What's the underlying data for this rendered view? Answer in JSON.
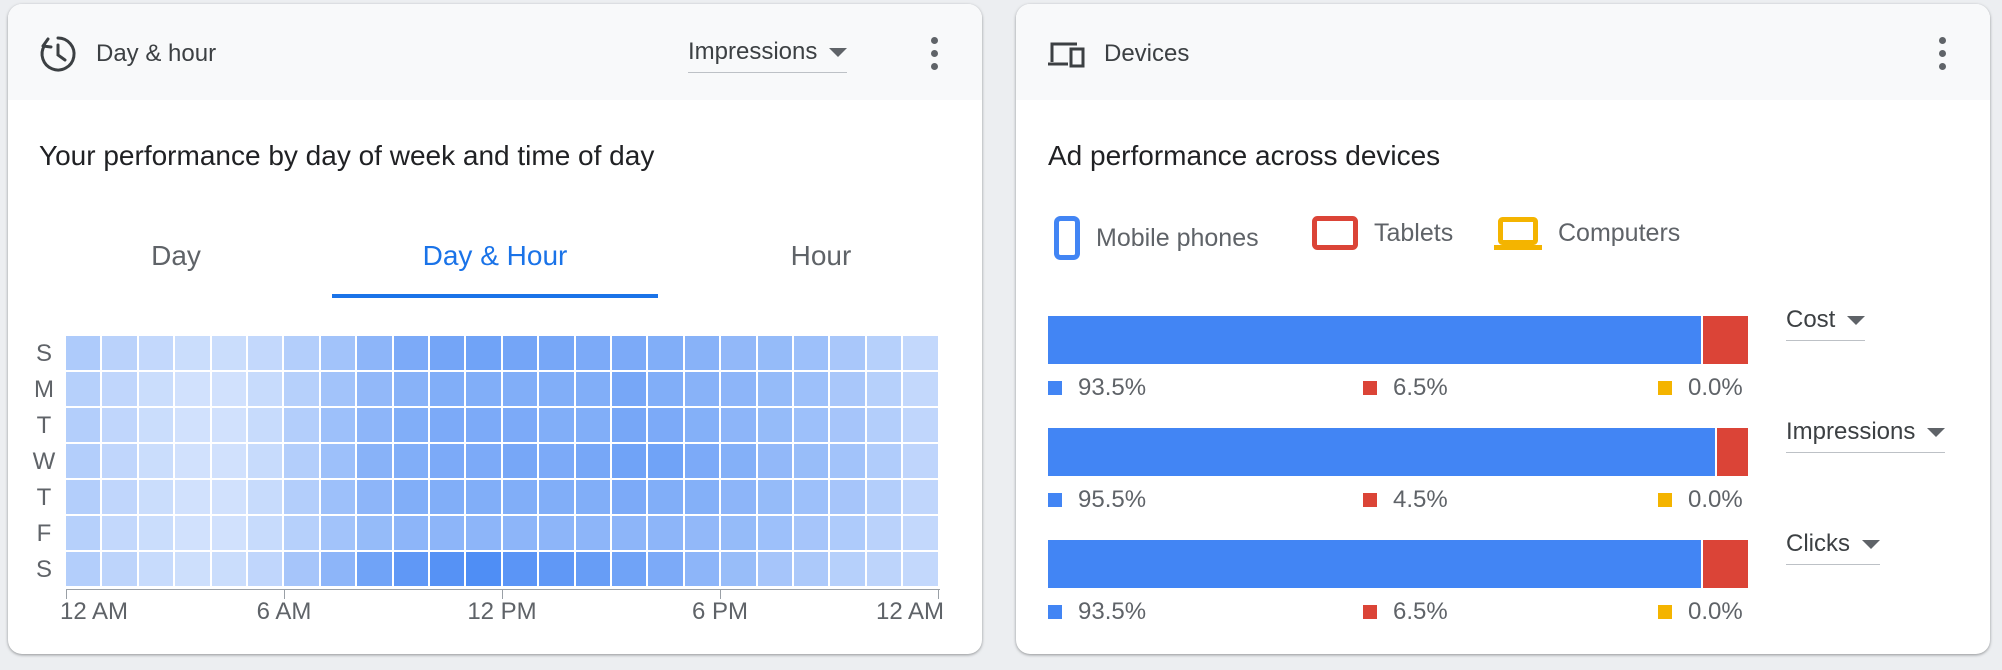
{
  "day_hour_card": {
    "title": "Day & hour",
    "metric": "Impressions",
    "heading": "Your performance by day of week and time of day",
    "tabs": [
      "Day",
      "Day & Hour",
      "Hour"
    ],
    "active_tab": "Day & Hour",
    "day_labels": [
      "S",
      "M",
      "T",
      "W",
      "T",
      "F",
      "S"
    ],
    "axis_labels": [
      "12 AM",
      "6 AM",
      "12 PM",
      "6 PM",
      "12 AM"
    ],
    "heatmap_intensity": [
      [
        0.35,
        0.28,
        0.22,
        0.18,
        0.18,
        0.22,
        0.32,
        0.42,
        0.55,
        0.65,
        0.7,
        0.72,
        0.7,
        0.68,
        0.65,
        0.65,
        0.62,
        0.58,
        0.52,
        0.5,
        0.45,
        0.38,
        0.3,
        0.22
      ],
      [
        0.3,
        0.24,
        0.18,
        0.14,
        0.14,
        0.2,
        0.3,
        0.42,
        0.52,
        0.58,
        0.62,
        0.62,
        0.62,
        0.62,
        0.62,
        0.68,
        0.62,
        0.58,
        0.55,
        0.5,
        0.45,
        0.38,
        0.3,
        0.22
      ],
      [
        0.32,
        0.24,
        0.18,
        0.14,
        0.14,
        0.2,
        0.32,
        0.45,
        0.55,
        0.62,
        0.65,
        0.65,
        0.65,
        0.62,
        0.62,
        0.68,
        0.65,
        0.6,
        0.55,
        0.5,
        0.45,
        0.4,
        0.32,
        0.24
      ],
      [
        0.32,
        0.24,
        0.18,
        0.14,
        0.14,
        0.2,
        0.32,
        0.45,
        0.58,
        0.62,
        0.65,
        0.65,
        0.68,
        0.65,
        0.68,
        0.72,
        0.72,
        0.65,
        0.6,
        0.52,
        0.48,
        0.42,
        0.34,
        0.25
      ],
      [
        0.32,
        0.24,
        0.18,
        0.14,
        0.14,
        0.2,
        0.32,
        0.45,
        0.55,
        0.62,
        0.62,
        0.62,
        0.62,
        0.62,
        0.62,
        0.65,
        0.62,
        0.6,
        0.55,
        0.5,
        0.45,
        0.4,
        0.32,
        0.24
      ],
      [
        0.3,
        0.22,
        0.18,
        0.14,
        0.14,
        0.2,
        0.3,
        0.42,
        0.5,
        0.55,
        0.55,
        0.55,
        0.55,
        0.55,
        0.55,
        0.55,
        0.55,
        0.52,
        0.5,
        0.45,
        0.4,
        0.35,
        0.28,
        0.22
      ],
      [
        0.32,
        0.26,
        0.2,
        0.16,
        0.18,
        0.24,
        0.4,
        0.55,
        0.72,
        0.82,
        0.88,
        0.92,
        0.85,
        0.82,
        0.78,
        0.72,
        0.65,
        0.55,
        0.48,
        0.4,
        0.36,
        0.3,
        0.26,
        0.22
      ]
    ],
    "colors": {
      "accent": "#1a73e8",
      "heat_base": "#e8f0fe",
      "heat_max": "#4285f4"
    }
  },
  "devices_card": {
    "title": "Devices",
    "heading": "Ad performance across devices",
    "legend": [
      {
        "label": "Mobile phones",
        "icon": "mobile-phone-icon",
        "color": "#4285f4"
      },
      {
        "label": "Tablets",
        "icon": "tablet-icon",
        "color": "#db4437"
      },
      {
        "label": "Computers",
        "icon": "computer-icon",
        "color": "#f4b400"
      }
    ],
    "rows": [
      {
        "metric": "Cost",
        "mobile": 93.5,
        "tablet": 6.5,
        "computer": 0.0,
        "labels": [
          "93.5%",
          "6.5%",
          "0.0%"
        ]
      },
      {
        "metric": "Impressions",
        "mobile": 95.5,
        "tablet": 4.5,
        "computer": 0.0,
        "labels": [
          "95.5%",
          "4.5%",
          "0.0%"
        ]
      },
      {
        "metric": "Clicks",
        "mobile": 93.5,
        "tablet": 6.5,
        "computer": 0.0,
        "labels": [
          "93.5%",
          "6.5%",
          "0.0%"
        ]
      }
    ]
  }
}
